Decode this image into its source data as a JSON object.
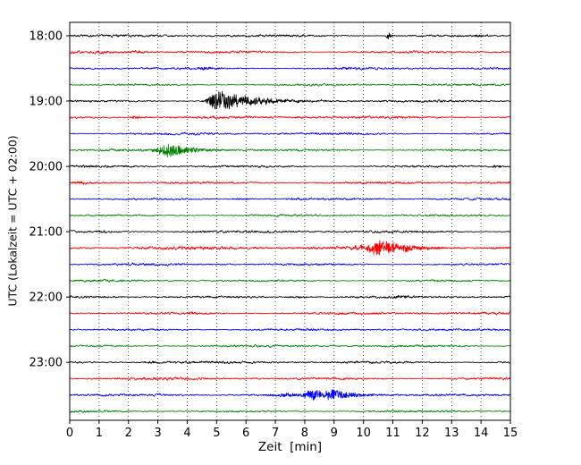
{
  "chart_data": {
    "type": "line",
    "title": "",
    "xlabel": "Zeit  [min]",
    "ylabel": "UTC (Lokalzeit = UTC + 02:00)",
    "xlim": [
      0,
      15
    ],
    "grid": "vertical-dotted",
    "x_tick_labels": [
      "0",
      "1",
      "2",
      "3",
      "4",
      "5",
      "6",
      "7",
      "8",
      "9",
      "10",
      "11",
      "12",
      "13",
      "14",
      "15"
    ],
    "y_tick_labels": [
      "18:00",
      "19:00",
      "20:00",
      "21:00",
      "22:00",
      "23:00"
    ],
    "trace_colors": [
      "#000000",
      "#ff0000",
      "#0000ff",
      "#008000"
    ],
    "minutes_per_line": 15,
    "traces": [
      {
        "label": "18:00",
        "color": "#000000",
        "noise": 0.9,
        "bursts": [
          {
            "c": 10.85,
            "a": 4.5,
            "r": 0.05,
            "d": 0.07
          },
          {
            "c": 13.95,
            "a": 1.1,
            "r": 0.15,
            "d": 0.25
          }
        ]
      },
      {
        "label": "",
        "color": "#ff0000",
        "noise": 0.95,
        "bursts": [
          {
            "c": 1.1,
            "a": 0.9,
            "r": 0.2,
            "d": 0.3
          },
          {
            "c": 2.3,
            "a": 1.2,
            "r": 0.25,
            "d": 0.4
          }
        ]
      },
      {
        "label": "",
        "color": "#0000ff",
        "noise": 0.9,
        "bursts": [
          {
            "c": 4.7,
            "a": 1.1,
            "r": 0.3,
            "d": 0.4
          },
          {
            "c": 9.5,
            "a": 0.9,
            "r": 0.25,
            "d": 0.35
          }
        ]
      },
      {
        "label": "",
        "color": "#008000",
        "noise": 0.8,
        "bursts": []
      },
      {
        "label": "19:00",
        "color": "#000000",
        "noise": 0.9,
        "bursts": [
          {
            "c": 5.05,
            "a": 11,
            "r": 0.22,
            "d": 1.0
          },
          {
            "c": 5.6,
            "a": 3,
            "r": 0.3,
            "d": 1.5
          }
        ]
      },
      {
        "label": "",
        "color": "#ff0000",
        "noise": 0.95,
        "bursts": [
          {
            "c": 2.2,
            "a": 2.2,
            "r": 0.12,
            "d": 0.25
          },
          {
            "c": 7.9,
            "a": 0.8,
            "r": 0.3,
            "d": 0.3
          }
        ]
      },
      {
        "label": "",
        "color": "#0000ff",
        "noise": 0.85,
        "bursts": []
      },
      {
        "label": "",
        "color": "#008000",
        "noise": 0.85,
        "bursts": [
          {
            "c": 3.0,
            "a": 2.0,
            "r": 0.2,
            "d": 0.5
          },
          {
            "c": 3.4,
            "a": 8,
            "r": 0.26,
            "d": 0.7
          }
        ]
      },
      {
        "label": "20:00",
        "color": "#000000",
        "noise": 0.9,
        "bursts": [
          {
            "c": 14.55,
            "a": 1.4,
            "r": 0.15,
            "d": 0.25
          }
        ]
      },
      {
        "label": "",
        "color": "#ff0000",
        "noise": 0.95,
        "bursts": [
          {
            "c": 0.5,
            "a": 1.0,
            "r": 0.2,
            "d": 0.3
          }
        ]
      },
      {
        "label": "",
        "color": "#0000ff",
        "noise": 0.85,
        "bursts": [
          {
            "c": 5.9,
            "a": 0.9,
            "r": 0.3,
            "d": 0.4
          },
          {
            "c": 7.8,
            "a": 0.8,
            "r": 0.3,
            "d": 0.4
          }
        ]
      },
      {
        "label": "",
        "color": "#008000",
        "noise": 0.8,
        "bursts": []
      },
      {
        "label": "21:00",
        "color": "#000000",
        "noise": 0.9,
        "bursts": [
          {
            "c": 1.2,
            "a": 1.2,
            "r": 0.2,
            "d": 0.3
          }
        ]
      },
      {
        "label": "",
        "color": "#ff0000",
        "noise": 1.25,
        "bursts": [
          {
            "c": 9.9,
            "a": 2.0,
            "r": 0.3,
            "d": 0.5
          },
          {
            "c": 10.6,
            "a": 9.5,
            "r": 0.32,
            "d": 0.85
          }
        ]
      },
      {
        "label": "",
        "color": "#0000ff",
        "noise": 0.85,
        "bursts": []
      },
      {
        "label": "",
        "color": "#008000",
        "noise": 0.8,
        "bursts": []
      },
      {
        "label": "22:00",
        "color": "#000000",
        "noise": 0.9,
        "bursts": [
          {
            "c": 7.8,
            "a": 1.0,
            "r": 0.3,
            "d": 0.4
          },
          {
            "c": 11.3,
            "a": 1.0,
            "r": 0.25,
            "d": 0.35
          }
        ]
      },
      {
        "label": "",
        "color": "#ff0000",
        "noise": 0.95,
        "bursts": [
          {
            "c": 4.2,
            "a": 0.9,
            "r": 0.25,
            "d": 0.35
          }
        ]
      },
      {
        "label": "",
        "color": "#0000ff",
        "noise": 0.85,
        "bursts": []
      },
      {
        "label": "",
        "color": "#008000",
        "noise": 0.8,
        "bursts": []
      },
      {
        "label": "23:00",
        "color": "#000000",
        "noise": 0.9,
        "bursts": [
          {
            "c": 2.9,
            "a": 1.1,
            "r": 0.25,
            "d": 0.35
          }
        ]
      },
      {
        "label": "",
        "color": "#ff0000",
        "noise": 0.95,
        "bursts": []
      },
      {
        "label": "",
        "color": "#0000ff",
        "noise": 0.9,
        "bursts": [
          {
            "c": 7.4,
            "a": 2.0,
            "r": 0.4,
            "d": 0.4
          },
          {
            "c": 8.4,
            "a": 6.0,
            "r": 0.35,
            "d": 0.4
          },
          {
            "c": 9.0,
            "a": 5.5,
            "r": 0.25,
            "d": 0.8
          }
        ]
      },
      {
        "label": "",
        "color": "#008000",
        "noise": 0.8,
        "bursts": []
      }
    ]
  }
}
